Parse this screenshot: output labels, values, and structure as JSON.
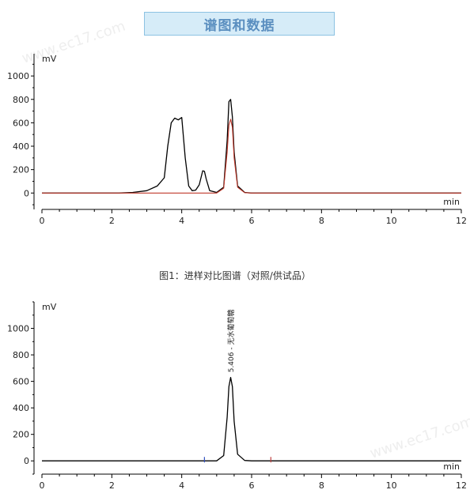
{
  "header": {
    "title": "谱图和数据"
  },
  "caption": "图1：进样对比图谱（对照/供试品）",
  "watermark": "www.ec17.com",
  "colors": {
    "black_trace": "#000000",
    "red_trace": "#c0392b",
    "baseline_red": "#d04040",
    "marker_blue": "#3050c0",
    "marker_red": "#c04040"
  },
  "chart_data": [
    {
      "type": "line",
      "ylabel": "mV",
      "xlabel": "min",
      "xlim": [
        0,
        12
      ],
      "ylim": [
        -140,
        1190
      ],
      "x_ticks": [
        0,
        2,
        4,
        6,
        8,
        10,
        12
      ],
      "y_ticks": [
        0,
        200,
        400,
        600,
        800,
        1000
      ],
      "series": [
        {
          "color": "#000000",
          "x": [
            0,
            2.2,
            2.6,
            3.0,
            3.3,
            3.5,
            3.6,
            3.7,
            3.8,
            3.9,
            4.0,
            4.1,
            4.2,
            4.3,
            4.4,
            4.5,
            4.6,
            4.65,
            4.7,
            4.8,
            5.0,
            5.2,
            5.3,
            5.35,
            5.4,
            5.45,
            5.5,
            5.6,
            5.8,
            6.0,
            12
          ],
          "y": [
            0,
            0,
            5,
            20,
            60,
            130,
            400,
            600,
            640,
            625,
            645,
            300,
            60,
            20,
            25,
            70,
            190,
            185,
            120,
            20,
            5,
            50,
            450,
            780,
            800,
            650,
            350,
            60,
            5,
            0,
            0
          ]
        },
        {
          "color": "#c0392b",
          "x": [
            0,
            5.0,
            5.2,
            5.3,
            5.35,
            5.4,
            5.45,
            5.5,
            5.6,
            5.8,
            6.0,
            12
          ],
          "y": [
            0,
            0,
            40,
            350,
            580,
            630,
            560,
            300,
            50,
            3,
            0,
            0
          ]
        }
      ]
    },
    {
      "type": "line",
      "ylabel": "mV",
      "xlabel": "min",
      "xlim": [
        0,
        12
      ],
      "ylim": [
        -100,
        1200
      ],
      "x_ticks": [
        0,
        2,
        4,
        6,
        8,
        10,
        12
      ],
      "y_ticks": [
        0,
        200,
        400,
        600,
        800,
        1000
      ],
      "annotations": [
        {
          "text": "5.406 - 无水葡萄糖",
          "x": 5.406
        }
      ],
      "series": [
        {
          "color": "#000000",
          "x": [
            0,
            5.0,
            5.2,
            5.3,
            5.35,
            5.4,
            5.45,
            5.5,
            5.6,
            5.8,
            6.0,
            12
          ],
          "y": [
            0,
            0,
            40,
            330,
            560,
            630,
            560,
            300,
            50,
            3,
            0,
            0
          ]
        }
      ],
      "markers": [
        {
          "x": 4.65,
          "color": "#3050c0"
        },
        {
          "x": 6.55,
          "color": "#c04040"
        }
      ]
    }
  ]
}
